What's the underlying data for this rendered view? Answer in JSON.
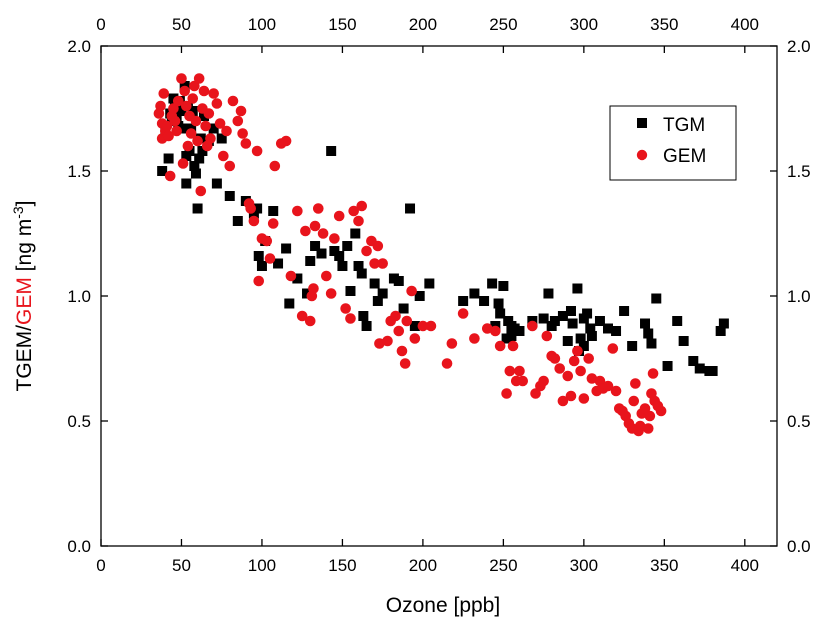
{
  "chart_data": {
    "type": "scatter",
    "xlabel": "Ozone [ppb]",
    "ylabel_parts": [
      {
        "text": "TGEM/",
        "color": "#000000"
      },
      {
        "text": "GEM",
        "color": "#e8141c"
      },
      {
        "text": " [ng m",
        "color": "#000000"
      },
      {
        "text": "-3",
        "color": "#000000",
        "superscript": true
      },
      {
        "text": "]",
        "color": "#000000"
      }
    ],
    "xlim": [
      0,
      420
    ],
    "ylim": [
      0,
      2.0
    ],
    "x_ticks": [
      "0",
      "50",
      "100",
      "150",
      "200",
      "250",
      "300",
      "350",
      "400"
    ],
    "y_ticks": [
      "0.0",
      "0.5",
      "1.0",
      "1.5",
      "2.0"
    ],
    "grid": false,
    "legend_position": "top-right",
    "series": [
      {
        "name": "TGM",
        "marker": "square",
        "color": "#000000",
        "points": [
          [
            38,
            1.5
          ],
          [
            40,
            1.66
          ],
          [
            42,
            1.55
          ],
          [
            43,
            1.73
          ],
          [
            44,
            1.7
          ],
          [
            45,
            1.79
          ],
          [
            46,
            1.77
          ],
          [
            47,
            1.75
          ],
          [
            47,
            1.72
          ],
          [
            48,
            1.68
          ],
          [
            49,
            1.78
          ],
          [
            50,
            1.76
          ],
          [
            50,
            1.74
          ],
          [
            51,
            1.67
          ],
          [
            52,
            1.84
          ],
          [
            53,
            1.56
          ],
          [
            53,
            1.45
          ],
          [
            54,
            1.76
          ],
          [
            55,
            1.58
          ],
          [
            56,
            1.67
          ],
          [
            57,
            1.74
          ],
          [
            58,
            1.52
          ],
          [
            59,
            1.49
          ],
          [
            60,
            1.35
          ],
          [
            61,
            1.55
          ],
          [
            62,
            1.63
          ],
          [
            63,
            1.58
          ],
          [
            64,
            1.72
          ],
          [
            67,
            1.62
          ],
          [
            70,
            1.67
          ],
          [
            72,
            1.45
          ],
          [
            75,
            1.63
          ],
          [
            80,
            1.4
          ],
          [
            85,
            1.3
          ],
          [
            90,
            1.38
          ],
          [
            95,
            1.33
          ],
          [
            97,
            1.35
          ],
          [
            98,
            1.16
          ],
          [
            100,
            1.12
          ],
          [
            102,
            1.22
          ],
          [
            107,
            1.34
          ],
          [
            110,
            1.13
          ],
          [
            115,
            1.19
          ],
          [
            117,
            0.97
          ],
          [
            122,
            1.07
          ],
          [
            128,
            1.01
          ],
          [
            130,
            1.14
          ],
          [
            133,
            1.2
          ],
          [
            137,
            1.17
          ],
          [
            143,
            1.58
          ],
          [
            145,
            1.18
          ],
          [
            148,
            1.16
          ],
          [
            150,
            1.12
          ],
          [
            153,
            1.2
          ],
          [
            155,
            1.02
          ],
          [
            158,
            1.25
          ],
          [
            160,
            1.12
          ],
          [
            162,
            1.09
          ],
          [
            163,
            0.92
          ],
          [
            165,
            0.88
          ],
          [
            170,
            1.05
          ],
          [
            172,
            0.98
          ],
          [
            175,
            1.01
          ],
          [
            182,
            1.07
          ],
          [
            185,
            1.06
          ],
          [
            188,
            0.95
          ],
          [
            192,
            1.35
          ],
          [
            195,
            0.88
          ],
          [
            198,
            1.0
          ],
          [
            204,
            1.05
          ],
          [
            225,
            0.98
          ],
          [
            232,
            1.01
          ],
          [
            238,
            0.98
          ],
          [
            243,
            1.05
          ],
          [
            245,
            0.88
          ],
          [
            247,
            0.97
          ],
          [
            248,
            0.93
          ],
          [
            250,
            1.04
          ],
          [
            252,
            0.83
          ],
          [
            253,
            0.9
          ],
          [
            255,
            0.88
          ],
          [
            255,
            0.84
          ],
          [
            257,
            0.87
          ],
          [
            260,
            0.86
          ],
          [
            268,
            0.9
          ],
          [
            275,
            0.91
          ],
          [
            278,
            1.01
          ],
          [
            280,
            0.88
          ],
          [
            282,
            0.9
          ],
          [
            287,
            0.92
          ],
          [
            290,
            0.82
          ],
          [
            292,
            0.94
          ],
          [
            293,
            0.89
          ],
          [
            296,
            1.03
          ],
          [
            297,
            0.78
          ],
          [
            298,
            0.83
          ],
          [
            300,
            0.8
          ],
          [
            300,
            0.91
          ],
          [
            302,
            0.93
          ],
          [
            304,
            0.87
          ],
          [
            305,
            0.84
          ],
          [
            310,
            0.9
          ],
          [
            315,
            0.87
          ],
          [
            320,
            0.86
          ],
          [
            325,
            0.94
          ],
          [
            330,
            0.8
          ],
          [
            338,
            0.89
          ],
          [
            340,
            0.85
          ],
          [
            342,
            0.81
          ],
          [
            345,
            0.99
          ],
          [
            352,
            0.72
          ],
          [
            358,
            0.9
          ],
          [
            362,
            0.82
          ],
          [
            368,
            0.74
          ],
          [
            372,
            0.71
          ],
          [
            378,
            0.7
          ],
          [
            380,
            0.7
          ],
          [
            385,
            0.86
          ],
          [
            387,
            0.89
          ]
        ]
      },
      {
        "name": "GEM",
        "marker": "circle",
        "color": "#e8141c",
        "points": [
          [
            36,
            1.73
          ],
          [
            37,
            1.76
          ],
          [
            38,
            1.69
          ],
          [
            38,
            1.63
          ],
          [
            39,
            1.81
          ],
          [
            40,
            1.66
          ],
          [
            41,
            1.68
          ],
          [
            42,
            1.64
          ],
          [
            43,
            1.48
          ],
          [
            44,
            1.72
          ],
          [
            45,
            1.75
          ],
          [
            46,
            1.7
          ],
          [
            47,
            1.66
          ],
          [
            48,
            1.78
          ],
          [
            50,
            1.87
          ],
          [
            51,
            1.53
          ],
          [
            52,
            1.82
          ],
          [
            53,
            1.76
          ],
          [
            54,
            1.6
          ],
          [
            55,
            1.72
          ],
          [
            56,
            1.65
          ],
          [
            57,
            1.79
          ],
          [
            58,
            1.84
          ],
          [
            59,
            1.7
          ],
          [
            60,
            1.62
          ],
          [
            61,
            1.87
          ],
          [
            62,
            1.42
          ],
          [
            63,
            1.75
          ],
          [
            64,
            1.82
          ],
          [
            65,
            1.68
          ],
          [
            66,
            1.6
          ],
          [
            67,
            1.73
          ],
          [
            68,
            1.63
          ],
          [
            70,
            1.81
          ],
          [
            72,
            1.77
          ],
          [
            74,
            1.69
          ],
          [
            76,
            1.56
          ],
          [
            78,
            1.66
          ],
          [
            80,
            1.52
          ],
          [
            82,
            1.78
          ],
          [
            85,
            1.7
          ],
          [
            87,
            1.74
          ],
          [
            88,
            1.65
          ],
          [
            90,
            1.61
          ],
          [
            92,
            1.37
          ],
          [
            93,
            1.35
          ],
          [
            95,
            1.3
          ],
          [
            97,
            1.58
          ],
          [
            98,
            1.06
          ],
          [
            100,
            1.23
          ],
          [
            103,
            1.22
          ],
          [
            105,
            1.15
          ],
          [
            107,
            1.29
          ],
          [
            108,
            1.52
          ],
          [
            112,
            1.61
          ],
          [
            115,
            1.62
          ],
          [
            118,
            1.08
          ],
          [
            122,
            1.34
          ],
          [
            125,
            0.92
          ],
          [
            127,
            1.26
          ],
          [
            130,
            0.9
          ],
          [
            131,
            1.0
          ],
          [
            132,
            1.03
          ],
          [
            133,
            1.28
          ],
          [
            135,
            1.35
          ],
          [
            138,
            1.25
          ],
          [
            140,
            1.08
          ],
          [
            143,
            1.01
          ],
          [
            145,
            1.23
          ],
          [
            148,
            1.32
          ],
          [
            152,
            0.95
          ],
          [
            155,
            0.91
          ],
          [
            157,
            1.34
          ],
          [
            160,
            1.3
          ],
          [
            162,
            1.36
          ],
          [
            165,
            1.18
          ],
          [
            168,
            1.22
          ],
          [
            170,
            1.13
          ],
          [
            172,
            1.2
          ],
          [
            173,
            0.81
          ],
          [
            175,
            1.13
          ],
          [
            178,
            0.82
          ],
          [
            180,
            0.9
          ],
          [
            183,
            0.92
          ],
          [
            185,
            0.86
          ],
          [
            187,
            0.78
          ],
          [
            189,
            0.73
          ],
          [
            190,
            0.9
          ],
          [
            193,
            1.02
          ],
          [
            195,
            0.83
          ],
          [
            200,
            0.88
          ],
          [
            205,
            0.88
          ],
          [
            215,
            0.73
          ],
          [
            218,
            0.81
          ],
          [
            225,
            0.93
          ],
          [
            232,
            0.83
          ],
          [
            240,
            0.87
          ],
          [
            245,
            0.86
          ],
          [
            248,
            0.8
          ],
          [
            252,
            0.61
          ],
          [
            254,
            0.7
          ],
          [
            256,
            0.8
          ],
          [
            258,
            0.66
          ],
          [
            260,
            0.7
          ],
          [
            262,
            0.66
          ],
          [
            268,
            0.88
          ],
          [
            270,
            0.61
          ],
          [
            273,
            0.64
          ],
          [
            275,
            0.66
          ],
          [
            277,
            0.84
          ],
          [
            280,
            0.76
          ],
          [
            282,
            0.75
          ],
          [
            285,
            0.71
          ],
          [
            287,
            0.58
          ],
          [
            290,
            0.68
          ],
          [
            292,
            0.6
          ],
          [
            294,
            0.74
          ],
          [
            296,
            0.78
          ],
          [
            298,
            0.7
          ],
          [
            300,
            0.59
          ],
          [
            303,
            0.75
          ],
          [
            305,
            0.67
          ],
          [
            308,
            0.62
          ],
          [
            310,
            0.66
          ],
          [
            312,
            0.63
          ],
          [
            315,
            0.64
          ],
          [
            318,
            0.79
          ],
          [
            320,
            0.62
          ],
          [
            322,
            0.55
          ],
          [
            324,
            0.54
          ],
          [
            326,
            0.52
          ],
          [
            328,
            0.49
          ],
          [
            330,
            0.47
          ],
          [
            331,
            0.58
          ],
          [
            332,
            0.65
          ],
          [
            334,
            0.46
          ],
          [
            335,
            0.48
          ],
          [
            336,
            0.53
          ],
          [
            338,
            0.55
          ],
          [
            340,
            0.47
          ],
          [
            341,
            0.52
          ],
          [
            342,
            0.61
          ],
          [
            343,
            0.69
          ],
          [
            344,
            0.58
          ],
          [
            346,
            0.56
          ],
          [
            348,
            0.54
          ]
        ]
      }
    ]
  }
}
